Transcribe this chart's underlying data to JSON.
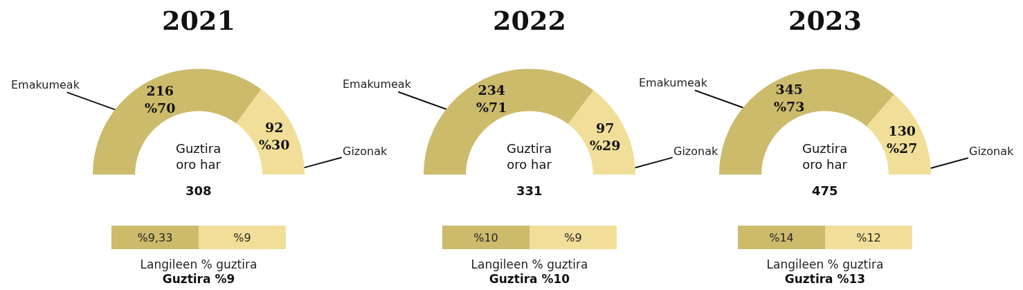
{
  "chart_data": [
    {
      "type": "donut",
      "title": "2021",
      "categories": [
        "Emakumeak",
        "Gizonak"
      ],
      "values": [
        216,
        92
      ],
      "colors": [
        "#cdbb6c",
        "#f1df99"
      ],
      "value_labels": [
        "216\n%70",
        "92\n%30"
      ],
      "annotations": [
        "Guztira\noro har",
        "308"
      ]
    },
    {
      "type": "donut",
      "title": "2022",
      "categories": [
        "Emakumeak",
        "Gizonak"
      ],
      "values": [
        234,
        97
      ],
      "colors": [
        "#cdbb6c",
        "#f1df99"
      ],
      "value_labels": [
        "234\n%71",
        "97\n%29"
      ],
      "annotations": [
        "Guztira\noro har",
        "331"
      ]
    },
    {
      "type": "donut",
      "title": "2023",
      "categories": [
        "Emakumeak",
        "Gizonak"
      ],
      "values": [
        345,
        130
      ],
      "colors": [
        "#cdbb6c",
        "#f1df99"
      ],
      "value_labels": [
        "345\n%73",
        "130\n%27"
      ],
      "annotations": [
        "Guztira\noro har",
        "475"
      ]
    },
    {
      "type": "other",
      "values": [
        9.33,
        9
      ],
      "value_labels": [
        "%9,33",
        "%9"
      ],
      "colors": [
        "#cdbb6c",
        "#f1df99"
      ],
      "xlabel": "Langileen % guztira",
      "annotations": [
        "Guztira %9"
      ]
    },
    {
      "type": "other",
      "values": [
        10,
        9
      ],
      "value_labels": [
        "%10",
        "%9"
      ],
      "colors": [
        "#cdbb6c",
        "#f1df99"
      ],
      "xlabel": "Langileen % guztira",
      "annotations": [
        "Guztira %10"
      ]
    },
    {
      "type": "other",
      "values": [
        14,
        12
      ],
      "value_labels": [
        "%14",
        "%12"
      ],
      "colors": [
        "#cdbb6c",
        "#f1df99"
      ],
      "xlabel": "Langileen % guztira",
      "annotations": [
        "Guztira %13"
      ]
    }
  ]
}
